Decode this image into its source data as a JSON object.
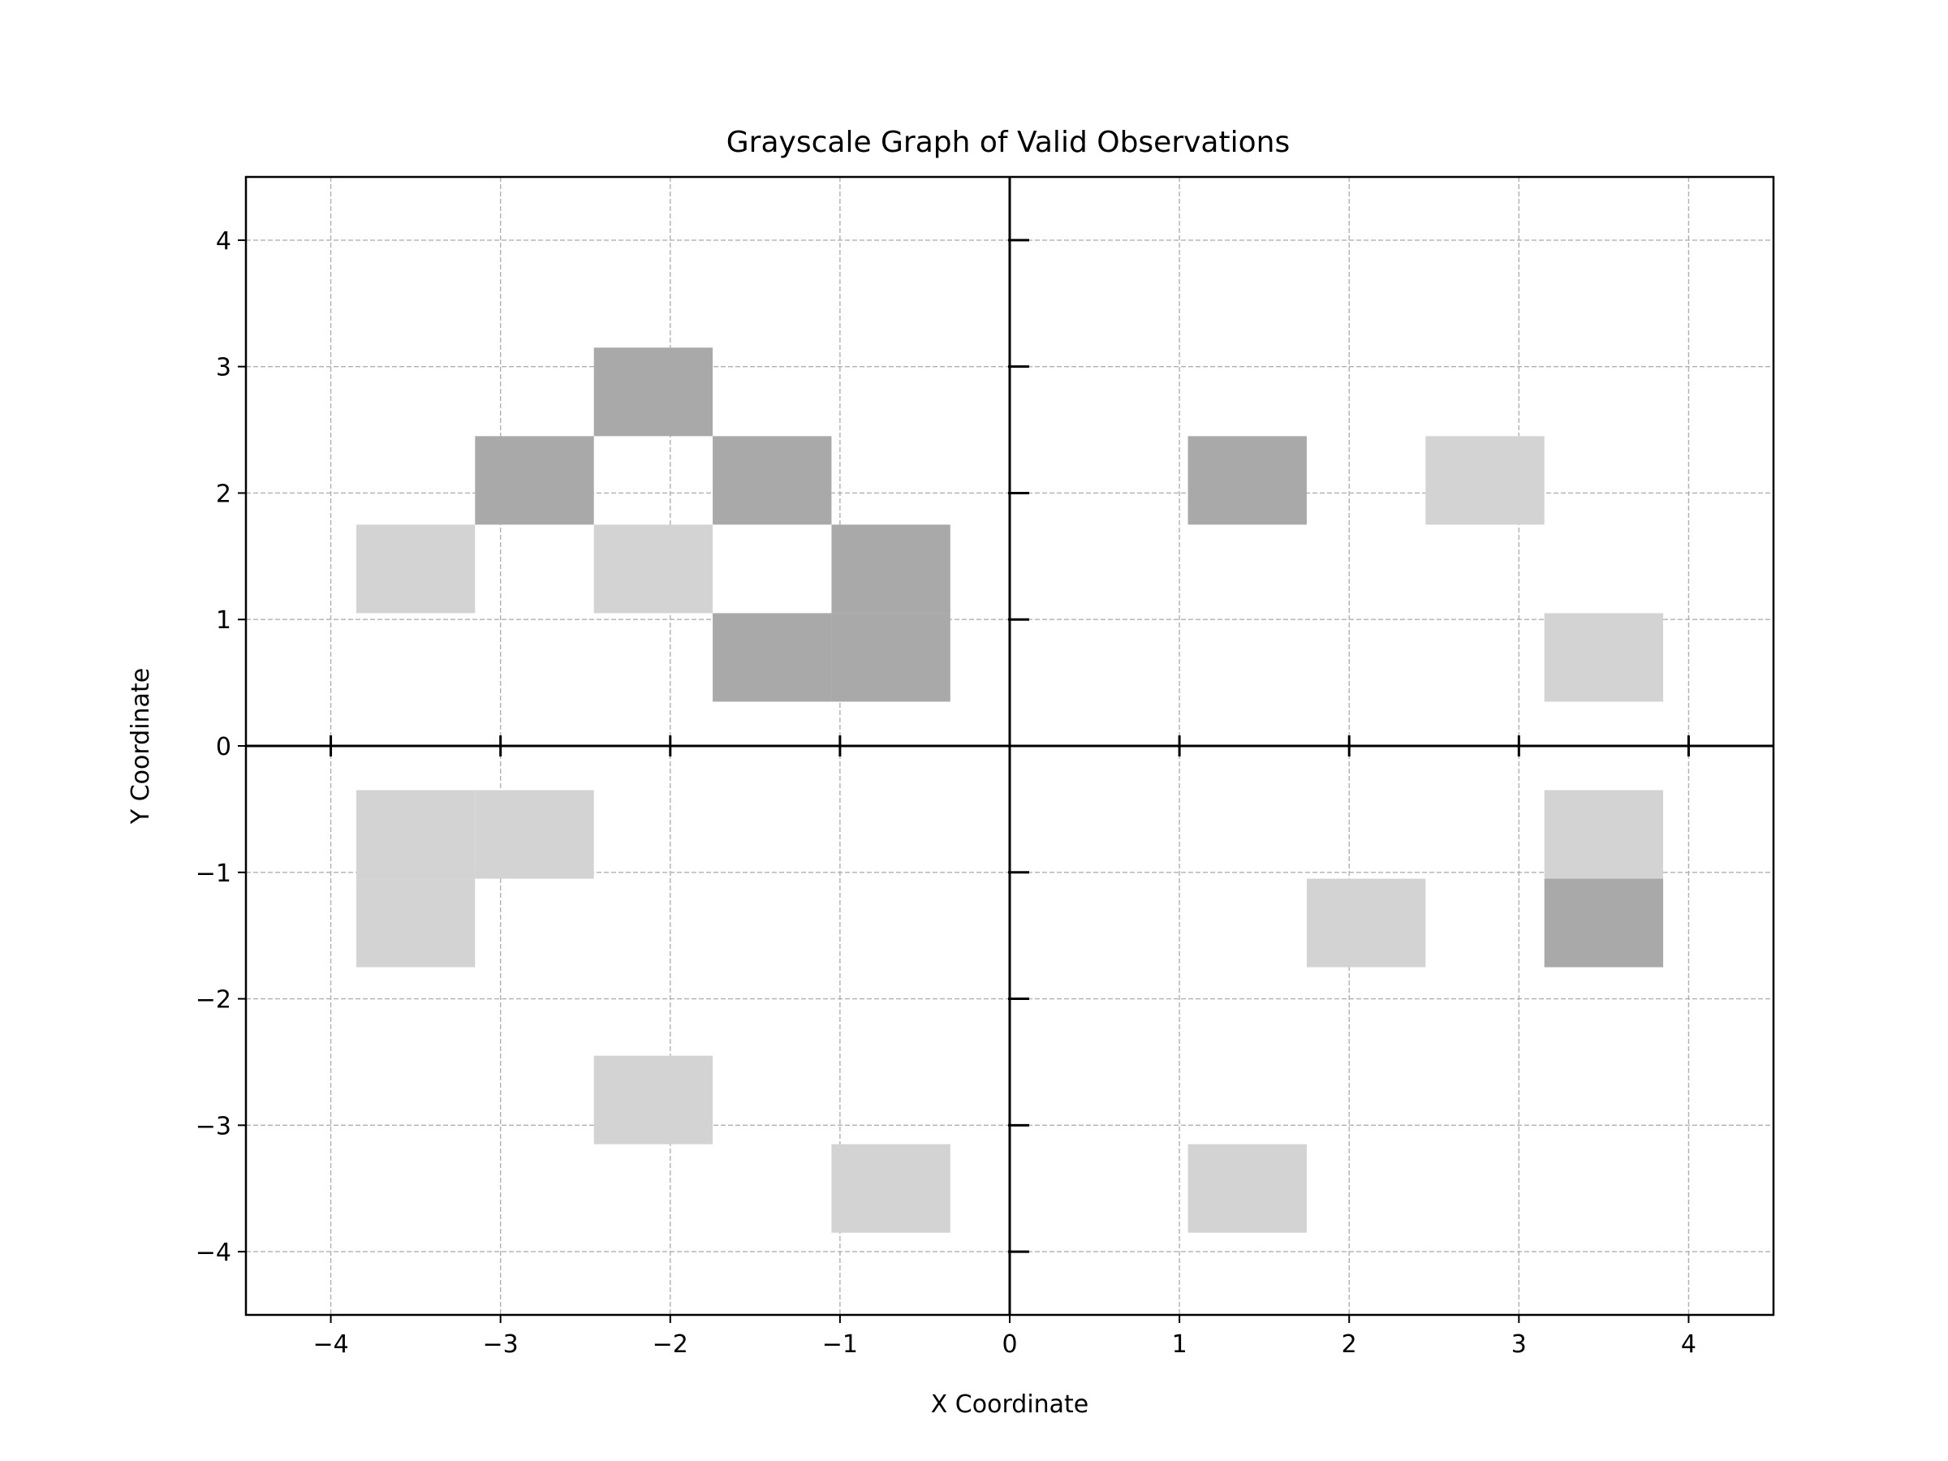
{
  "chart_data": {
    "type": "heatmap",
    "title": "Grayscale Graph of Valid Observations",
    "xlabel": "X Coordinate",
    "ylabel": "Y Coordinate",
    "xlim": [
      -4.5,
      4.5
    ],
    "ylim": [
      -4.5,
      4.5
    ],
    "x_ticks": [
      -4,
      -3,
      -2,
      -1,
      0,
      1,
      2,
      3,
      4
    ],
    "y_ticks": [
      -4,
      -3,
      -2,
      -1,
      0,
      1,
      2,
      3,
      4
    ],
    "x_tick_labels": [
      "−4",
      "−3",
      "−2",
      "−1",
      "0",
      "1",
      "2",
      "3",
      "4"
    ],
    "y_tick_labels": [
      "−4",
      "−3",
      "−2",
      "−1",
      "0",
      "1",
      "2",
      "3",
      "4"
    ],
    "grid": true,
    "cell_size": [
      0.7,
      0.7
    ],
    "legend": "none",
    "colors": {
      "light": "#d3d3d3",
      "dark": "#a9a9a9",
      "grid": "#b0b0b0",
      "axes": "#000000"
    },
    "cells": [
      {
        "x": -3.5,
        "y": 1.4,
        "level": "light"
      },
      {
        "x": -2.8,
        "y": 2.1,
        "level": "dark"
      },
      {
        "x": -2.1,
        "y": 2.8,
        "level": "dark"
      },
      {
        "x": -2.1,
        "y": 1.4,
        "level": "light"
      },
      {
        "x": -1.4,
        "y": 2.1,
        "level": "dark"
      },
      {
        "x": -1.4,
        "y": 0.7,
        "level": "dark"
      },
      {
        "x": -0.7,
        "y": 1.4,
        "level": "dark"
      },
      {
        "x": -0.7,
        "y": 0.7,
        "level": "dark"
      },
      {
        "x": 1.4,
        "y": 2.1,
        "level": "dark"
      },
      {
        "x": 2.8,
        "y": 2.1,
        "level": "light"
      },
      {
        "x": 3.5,
        "y": 0.7,
        "level": "light"
      },
      {
        "x": -3.5,
        "y": -0.7,
        "level": "light"
      },
      {
        "x": -2.8,
        "y": -0.7,
        "level": "light"
      },
      {
        "x": -3.5,
        "y": -1.4,
        "level": "light"
      },
      {
        "x": -2.1,
        "y": -2.8,
        "level": "light"
      },
      {
        "x": -0.7,
        "y": -3.5,
        "level": "light"
      },
      {
        "x": 2.1,
        "y": -1.4,
        "level": "light"
      },
      {
        "x": 3.5,
        "y": -0.7,
        "level": "light"
      },
      {
        "x": 3.5,
        "y": -1.4,
        "level": "dark"
      },
      {
        "x": 1.4,
        "y": -3.5,
        "level": "light"
      }
    ]
  }
}
